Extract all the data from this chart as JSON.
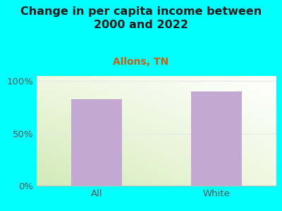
{
  "title": "Change in per capita income between\n2000 and 2022",
  "subtitle": "Allons, TN",
  "categories": [
    "All",
    "White"
  ],
  "values": [
    83,
    90
  ],
  "bar_color": "#c4a8d4",
  "background_color": "#00FFFF",
  "title_fontsize": 11.5,
  "subtitle_fontsize": 10,
  "tick_label_fontsize": 9.5,
  "yticks": [
    0,
    50,
    100
  ],
  "ytick_labels": [
    "0%",
    "50%",
    "100%"
  ],
  "ylim": [
    0,
    105
  ],
  "bar_width": 0.42,
  "title_color": "#1a1a1a",
  "subtitle_color": "#c86010",
  "tick_color": "#555555",
  "grid_color": "#e8e8e8",
  "gradient_tl": [
    0.94,
    0.97,
    0.88
  ],
  "gradient_tr": [
    1.0,
    1.0,
    1.0
  ],
  "gradient_bl": [
    0.82,
    0.92,
    0.72
  ],
  "gradient_br": [
    0.94,
    0.97,
    0.88
  ]
}
